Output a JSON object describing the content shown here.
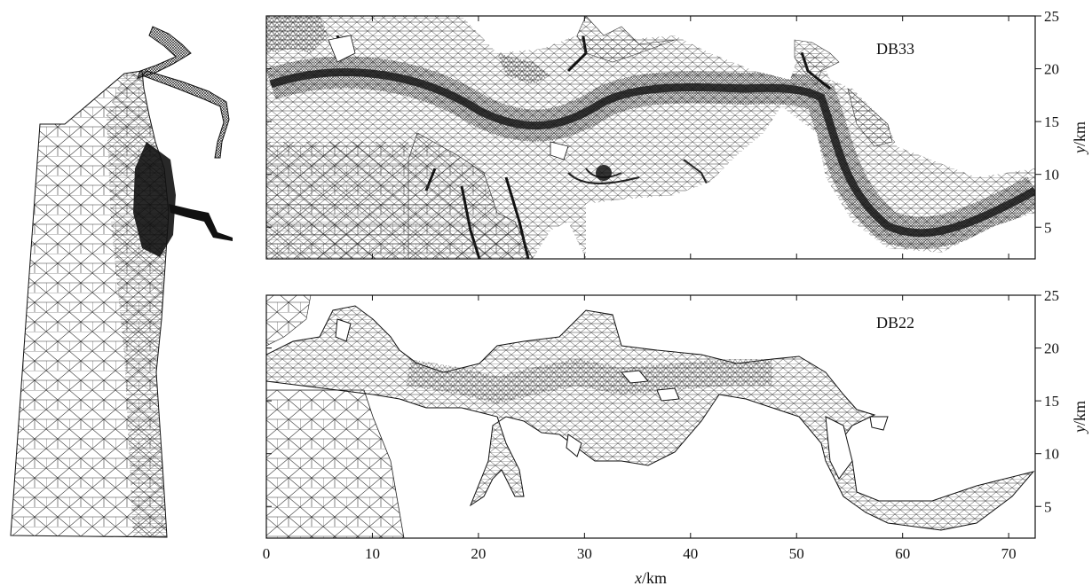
{
  "figure": {
    "panels": [
      {
        "id": "top",
        "label": "DB33"
      },
      {
        "id": "bottom",
        "label": "DB22"
      }
    ],
    "x_axis": {
      "label_italic": "x",
      "label_unit": "/km",
      "ticks": [
        "0",
        "10",
        "20",
        "30",
        "40",
        "50",
        "60",
        "70"
      ],
      "range": [
        0,
        72.5
      ]
    },
    "y_axis": {
      "label_italic": "y",
      "label_unit": "/km",
      "ticks": [
        "5",
        "10",
        "15",
        "20",
        "25"
      ],
      "range": [
        2,
        25
      ]
    }
  },
  "colors": {
    "ink": "#111111",
    "mesh": "#333333",
    "dense": "#151515"
  }
}
